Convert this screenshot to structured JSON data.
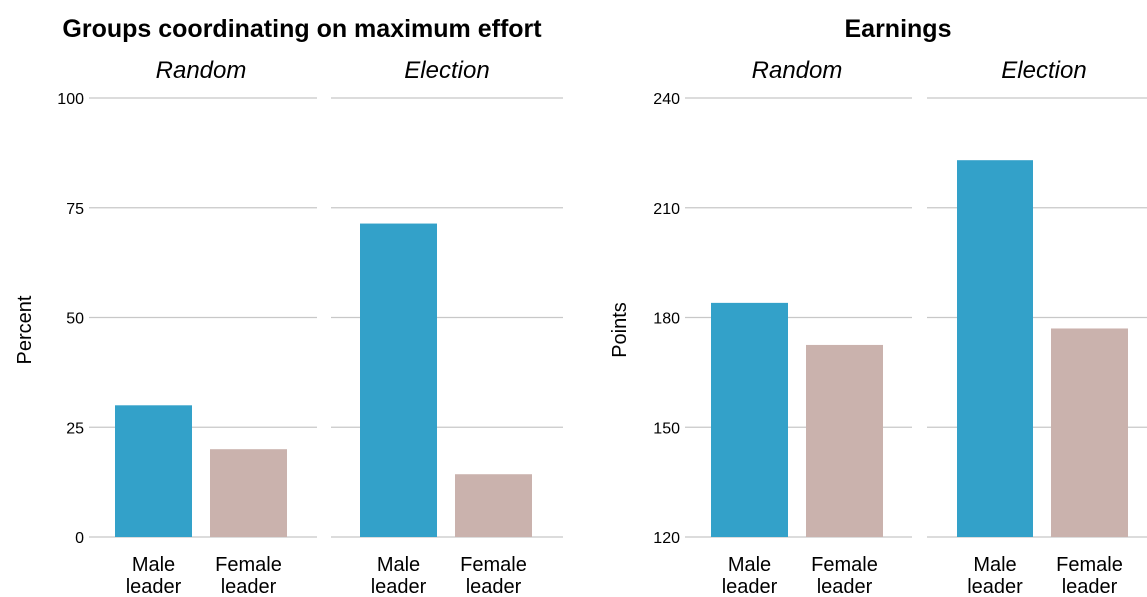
{
  "colors": {
    "male": "#33A1C9",
    "female": "#CAB2AD"
  },
  "chart_data": [
    {
      "type": "bar",
      "title": "Groups coordinating on maximum effort",
      "ylabel": "Percent",
      "ylim": [
        0,
        100
      ],
      "yticks": [
        "0",
        "25",
        "50",
        "75",
        "100"
      ],
      "grid": true,
      "facets": [
        {
          "label": "Random",
          "categories": [
            [
              "Male",
              "leader"
            ],
            [
              "Female",
              "leader"
            ]
          ],
          "values": [
            30,
            20
          ]
        },
        {
          "label": "Election",
          "categories": [
            [
              "Male",
              "leader"
            ],
            [
              "Female",
              "leader"
            ]
          ],
          "values": [
            71.4,
            14.3
          ]
        }
      ]
    },
    {
      "type": "bar",
      "title": "Earnings",
      "ylabel": "Points",
      "ylim": [
        120,
        240
      ],
      "yticks": [
        "120",
        "150",
        "180",
        "210",
        "240"
      ],
      "grid": true,
      "facets": [
        {
          "label": "Random",
          "categories": [
            [
              "Male",
              "leader"
            ],
            [
              "Female",
              "leader"
            ]
          ],
          "values": [
            184,
            172.5
          ]
        },
        {
          "label": "Election",
          "categories": [
            [
              "Male",
              "leader"
            ],
            [
              "Female",
              "leader"
            ]
          ],
          "values": [
            223,
            177
          ]
        }
      ]
    }
  ]
}
